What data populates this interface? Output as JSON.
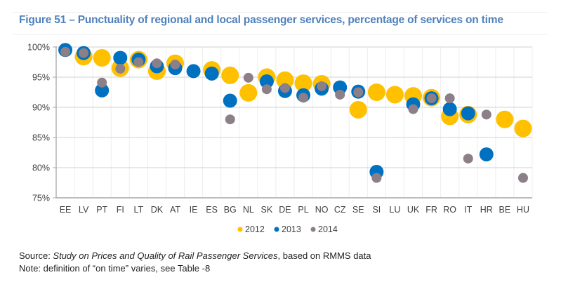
{
  "figure": {
    "title": "Figure 51 – Punctuality of regional and local passenger services, percentage of services on time",
    "source_prefix": "Source: ",
    "source_title": "Study on Prices and Quality of Rail Passenger Services",
    "source_suffix": ", based on RMMS data",
    "note": "Note: definition of “on time” varies, see Table -8"
  },
  "chart_data": {
    "type": "scatter",
    "title": "Punctuality of regional and local passenger services, percentage of services on time",
    "xlabel": "",
    "ylabel": "",
    "ylim": [
      75,
      100
    ],
    "yticks": [
      75,
      80,
      85,
      90,
      95,
      100
    ],
    "ytick_labels": [
      "75%",
      "80%",
      "85%",
      "90%",
      "95%",
      "100%"
    ],
    "grid": true,
    "legend": "bottom-center",
    "categories": [
      "EE",
      "LV",
      "PT",
      "FI",
      "LT",
      "DK",
      "AT",
      "IE",
      "ES",
      "BG",
      "NL",
      "SK",
      "DE",
      "PL",
      "NO",
      "CZ",
      "SE",
      "SI",
      "LU",
      "UK",
      "FR",
      "RO",
      "IT",
      "HR",
      "BE",
      "HU"
    ],
    "series": [
      {
        "name": "2012",
        "color": "#FFC000",
        "values": [
          null,
          98.4,
          98.2,
          96.5,
          97.9,
          96.0,
          97.3,
          null,
          96.2,
          95.3,
          92.4,
          95.0,
          94.5,
          94.0,
          93.9,
          null,
          89.6,
          92.5,
          92.1,
          91.9,
          91.6,
          88.5,
          88.8,
          null,
          88.0,
          86.5
        ]
      },
      {
        "name": "2013",
        "color": "#0070C0",
        "values": [
          99.5,
          99.0,
          92.8,
          98.2,
          97.9,
          96.8,
          96.5,
          96.0,
          95.6,
          91.1,
          null,
          94.3,
          92.7,
          92.0,
          93.1,
          93.3,
          92.6,
          79.3,
          null,
          90.5,
          91.5,
          89.7,
          89.0,
          82.2,
          null,
          null
        ]
      },
      {
        "name": "2014",
        "color": "#8C7F87",
        "values": [
          99.2,
          99.0,
          94.1,
          96.4,
          97.5,
          97.3,
          97.1,
          null,
          null,
          88.0,
          94.9,
          93.0,
          93.2,
          91.6,
          93.5,
          92.1,
          92.5,
          78.3,
          null,
          89.7,
          91.5,
          91.5,
          81.5,
          88.8,
          null,
          78.3
        ]
      }
    ]
  }
}
